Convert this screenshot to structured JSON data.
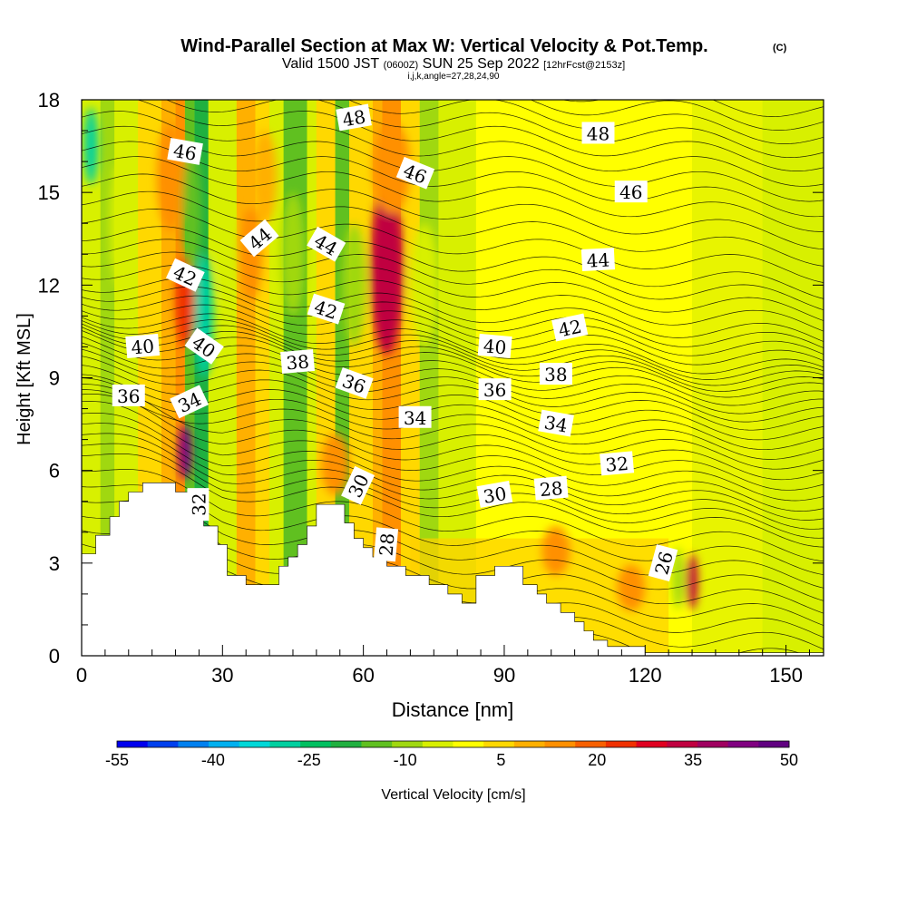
{
  "chart_data": {
    "type": "heatmap",
    "title": "Wind-Parallel Section at Max W: Vertical Velocity & Pot.Temp.",
    "title_mark": "(C)",
    "subtitle": {
      "valid": "Valid 1500 JST",
      "utc": "(0600Z)",
      "date": "SUN 25 Sep 2022",
      "forecast": "[12hrFcst@2153z]"
    },
    "indices": "i,j,k,angle=27,28,24,90",
    "xlabel": "Distance [nm]",
    "ylabel": "Height [Kft MSL]",
    "xlim": [
      0,
      158
    ],
    "ylim": [
      0,
      18
    ],
    "xticks": [
      "0",
      "30",
      "60",
      "90",
      "120",
      "150"
    ],
    "yticks": [
      "0",
      "3",
      "6",
      "9",
      "12",
      "15",
      "18"
    ],
    "colorbar": {
      "label": "Vertical Velocity [cm/s]",
      "tick_labels": [
        "-55",
        "-40",
        "-25",
        "-10",
        "5",
        "20",
        "35",
        "50"
      ],
      "colors": [
        "#0000ee",
        "#0040ee",
        "#0080f0",
        "#00b0f0",
        "#00d8d8",
        "#00d0a0",
        "#00c060",
        "#20b040",
        "#60c020",
        "#a0d810",
        "#d8f000",
        "#ffff00",
        "#ffd800",
        "#ffb000",
        "#ff9000",
        "#f86000",
        "#f03000",
        "#e00020",
        "#c00040",
        "#a00060",
        "#800080",
        "#600080"
      ]
    },
    "terrain_profile": [
      [
        0,
        3.3
      ],
      [
        3,
        3.3
      ],
      [
        3,
        3.9
      ],
      [
        6,
        3.9
      ],
      [
        6,
        4.5
      ],
      [
        8,
        4.5
      ],
      [
        8,
        5.0
      ],
      [
        10,
        5.0
      ],
      [
        10,
        5.3
      ],
      [
        13,
        5.3
      ],
      [
        13,
        5.6
      ],
      [
        20,
        5.6
      ],
      [
        20,
        5.3
      ],
      [
        23,
        5.3
      ],
      [
        23,
        4.7
      ],
      [
        26,
        4.7
      ],
      [
        26,
        4.2
      ],
      [
        29,
        4.2
      ],
      [
        29,
        3.6
      ],
      [
        31,
        3.6
      ],
      [
        31,
        2.6
      ],
      [
        35,
        2.6
      ],
      [
        35,
        2.3
      ],
      [
        42,
        2.3
      ],
      [
        42,
        2.9
      ],
      [
        44,
        2.9
      ],
      [
        44,
        3.2
      ],
      [
        46,
        3.2
      ],
      [
        46,
        3.6
      ],
      [
        48,
        3.6
      ],
      [
        48,
        4.2
      ],
      [
        50,
        4.2
      ],
      [
        50,
        4.9
      ],
      [
        56,
        4.9
      ],
      [
        56,
        4.3
      ],
      [
        58,
        4.3
      ],
      [
        58,
        3.8
      ],
      [
        60,
        3.8
      ],
      [
        60,
        3.5
      ],
      [
        62,
        3.5
      ],
      [
        62,
        3.2
      ],
      [
        65,
        3.2
      ],
      [
        65,
        2.9
      ],
      [
        69,
        2.9
      ],
      [
        69,
        2.6
      ],
      [
        74,
        2.6
      ],
      [
        74,
        2.3
      ],
      [
        78,
        2.3
      ],
      [
        78,
        2.0
      ],
      [
        81,
        2.0
      ],
      [
        81,
        1.7
      ],
      [
        84,
        1.7
      ],
      [
        84,
        2.6
      ],
      [
        88,
        2.6
      ],
      [
        88,
        2.9
      ],
      [
        94,
        2.9
      ],
      [
        94,
        2.3
      ],
      [
        97,
        2.3
      ],
      [
        97,
        2.0
      ],
      [
        99,
        2.0
      ],
      [
        99,
        1.7
      ],
      [
        102,
        1.7
      ],
      [
        102,
        1.4
      ],
      [
        105,
        1.4
      ],
      [
        105,
        1.1
      ],
      [
        107,
        1.1
      ],
      [
        107,
        0.8
      ],
      [
        109,
        0.8
      ],
      [
        109,
        0.5
      ],
      [
        112,
        0.5
      ],
      [
        112,
        0.3
      ],
      [
        120,
        0.3
      ],
      [
        120,
        0.1
      ],
      [
        158,
        0.1
      ]
    ],
    "contour_labels": [
      {
        "text": "48",
        "x": 58,
        "y": 17.4,
        "angle": -10
      },
      {
        "text": "48",
        "x": 110,
        "y": 16.9,
        "angle": 0
      },
      {
        "text": "46",
        "x": 22,
        "y": 16.3,
        "angle": 10
      },
      {
        "text": "46",
        "x": 71,
        "y": 15.6,
        "angle": 22
      },
      {
        "text": "46",
        "x": 117,
        "y": 15.0,
        "angle": 0
      },
      {
        "text": "44",
        "x": 38,
        "y": 13.5,
        "angle": -40
      },
      {
        "text": "44",
        "x": 52,
        "y": 13.3,
        "angle": 30
      },
      {
        "text": "44",
        "x": 110,
        "y": 12.8,
        "angle": -3
      },
      {
        "text": "42",
        "x": 22,
        "y": 12.3,
        "angle": 25
      },
      {
        "text": "42",
        "x": 52,
        "y": 11.2,
        "angle": 18
      },
      {
        "text": "42",
        "x": 104,
        "y": 10.6,
        "angle": -12
      },
      {
        "text": "40",
        "x": 13,
        "y": 10.0,
        "angle": -5
      },
      {
        "text": "40",
        "x": 26,
        "y": 10.0,
        "angle": 35
      },
      {
        "text": "40",
        "x": 88,
        "y": 10.0,
        "angle": 5
      },
      {
        "text": "38",
        "x": 46,
        "y": 9.5,
        "angle": -5
      },
      {
        "text": "38",
        "x": 101,
        "y": 9.1,
        "angle": 0
      },
      {
        "text": "36",
        "x": 10,
        "y": 8.4,
        "angle": 0
      },
      {
        "text": "36",
        "x": 58,
        "y": 8.8,
        "angle": 20
      },
      {
        "text": "36",
        "x": 88,
        "y": 8.6,
        "angle": 0
      },
      {
        "text": "34",
        "x": 23,
        "y": 8.2,
        "angle": -25
      },
      {
        "text": "34",
        "x": 71,
        "y": 7.7,
        "angle": 0
      },
      {
        "text": "34",
        "x": 101,
        "y": 7.5,
        "angle": 10
      },
      {
        "text": "32",
        "x": 114,
        "y": 6.2,
        "angle": -5
      },
      {
        "text": "32",
        "x": 25,
        "y": 4.9,
        "angle": -90
      },
      {
        "text": "30",
        "x": 59,
        "y": 5.5,
        "angle": -65
      },
      {
        "text": "30",
        "x": 88,
        "y": 5.2,
        "angle": -10
      },
      {
        "text": "28",
        "x": 100,
        "y": 5.4,
        "angle": -5
      },
      {
        "text": "28",
        "x": 65,
        "y": 3.6,
        "angle": -85
      },
      {
        "text": "26",
        "x": 124,
        "y": 3.0,
        "angle": -75
      }
    ],
    "velocity_features": [
      {
        "x": 65,
        "y": 12.5,
        "w": 3.5,
        "h": 5.5,
        "value": 30
      },
      {
        "x": 66,
        "y": 15.8,
        "w": 4,
        "h": 3,
        "value": 15
      },
      {
        "x": 22,
        "y": 6.6,
        "w": 1.4,
        "h": 1.8,
        "value": 40
      },
      {
        "x": 22,
        "y": 11.5,
        "w": 2,
        "h": 3,
        "value": 22
      },
      {
        "x": 19,
        "y": 15.5,
        "w": 3,
        "h": 3.5,
        "value": 12
      },
      {
        "x": 36,
        "y": 13,
        "w": 2.5,
        "h": 3,
        "value": 15
      },
      {
        "x": 39,
        "y": 15.5,
        "w": 2.5,
        "h": 3,
        "value": 8
      },
      {
        "x": 54,
        "y": 6.2,
        "w": 3,
        "h": 2,
        "value": 15
      },
      {
        "x": 130,
        "y": 2.4,
        "w": 1.2,
        "h": 1.8,
        "value": 30
      },
      {
        "x": 101,
        "y": 3.4,
        "w": 3,
        "h": 1.6,
        "value": 15
      },
      {
        "x": 117,
        "y": 2.2,
        "w": 3,
        "h": 1.5,
        "value": 12
      },
      {
        "x": 26,
        "y": 11,
        "w": 2,
        "h": 4,
        "value": -35
      },
      {
        "x": 23.5,
        "y": 14.5,
        "w": 2,
        "h": 4,
        "value": -18
      },
      {
        "x": 2,
        "y": 16.5,
        "w": 1.5,
        "h": 2.5,
        "value": -35
      },
      {
        "x": 8,
        "y": 14,
        "w": 2,
        "h": 4,
        "value": -8
      },
      {
        "x": 31,
        "y": 13,
        "w": 1.8,
        "h": 3,
        "value": -10
      },
      {
        "x": 45,
        "y": 13,
        "w": 2.5,
        "h": 4,
        "value": -12
      },
      {
        "x": 58,
        "y": 12,
        "w": 2.5,
        "h": 4,
        "value": -12
      },
      {
        "x": 73,
        "y": 12,
        "w": 3,
        "h": 4,
        "value": -8
      },
      {
        "x": 127,
        "y": 2.5,
        "w": 1.2,
        "h": 2,
        "value": -12
      },
      {
        "x": 155,
        "y": 1.5,
        "w": 3,
        "h": 2.5,
        "value": -8
      }
    ]
  }
}
